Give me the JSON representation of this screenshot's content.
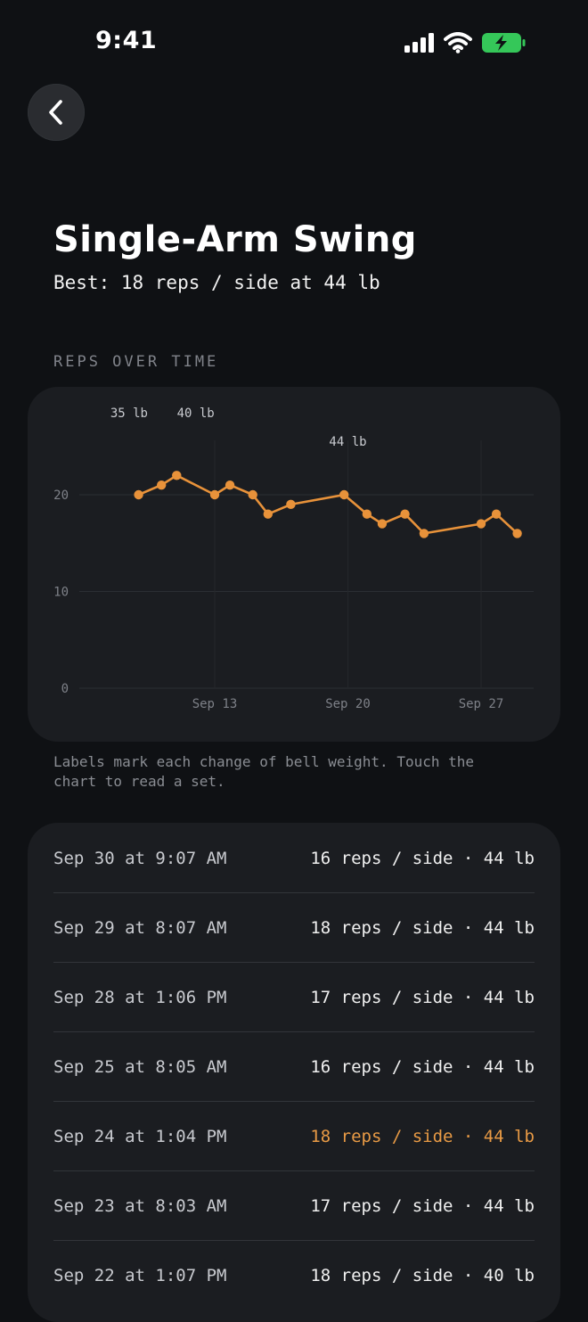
{
  "status_bar": {
    "time": "9:41",
    "battery_color": "#35c759"
  },
  "header": {
    "title": "Single-Arm Swing",
    "best": "Best: 18 reps / side at 44 lb"
  },
  "chart_section": {
    "label": "REPS OVER TIME",
    "note": "Labels mark each change of bell weight. Touch the chart to read a set."
  },
  "chart_data": {
    "type": "line",
    "series_color": "#e8923a",
    "ylim": [
      0,
      20
    ],
    "yticks": [
      "0",
      "10",
      "20"
    ],
    "xticks": [
      {
        "label": "Sep 13",
        "day": 13
      },
      {
        "label": "Sep 20",
        "day": 20
      },
      {
        "label": "Sep 27",
        "day": 27
      }
    ],
    "weight_changes": [
      {
        "label": "35 lb",
        "day": 8.5
      },
      {
        "label": "40 lb",
        "day": 12
      },
      {
        "label": "44 lb",
        "day": 20
      }
    ],
    "points": [
      {
        "day": 9.0,
        "reps": 20
      },
      {
        "day": 10.2,
        "reps": 21
      },
      {
        "day": 11.0,
        "reps": 22
      },
      {
        "day": 13.0,
        "reps": 20
      },
      {
        "day": 13.8,
        "reps": 21
      },
      {
        "day": 15.0,
        "reps": 20
      },
      {
        "day": 15.8,
        "reps": 18
      },
      {
        "day": 17.0,
        "reps": 19
      },
      {
        "day": 19.8,
        "reps": 20
      },
      {
        "day": 21.0,
        "reps": 18
      },
      {
        "day": 21.8,
        "reps": 17
      },
      {
        "day": 23.0,
        "reps": 18
      },
      {
        "day": 24.0,
        "reps": 16
      },
      {
        "day": 27.0,
        "reps": 17
      },
      {
        "day": 27.8,
        "reps": 18
      },
      {
        "day": 28.9,
        "reps": 16
      }
    ]
  },
  "history": [
    {
      "date": "Sep 30 at 9:07 AM",
      "value": "16 reps / side · 44 lb",
      "highlight": false
    },
    {
      "date": "Sep 29 at 8:07 AM",
      "value": "18 reps / side · 44 lb",
      "highlight": false
    },
    {
      "date": "Sep 28 at 1:06 PM",
      "value": "17 reps / side · 44 lb",
      "highlight": false
    },
    {
      "date": "Sep 25 at 8:05 AM",
      "value": "16 reps / side · 44 lb",
      "highlight": false
    },
    {
      "date": "Sep 24 at 1:04 PM",
      "value": "18 reps / side · 44 lb",
      "highlight": true
    },
    {
      "date": "Sep 23 at 8:03 AM",
      "value": "17 reps / side · 44 lb",
      "highlight": false
    },
    {
      "date": "Sep 22 at 1:07 PM",
      "value": "18 reps / side · 40 lb",
      "highlight": false
    }
  ]
}
